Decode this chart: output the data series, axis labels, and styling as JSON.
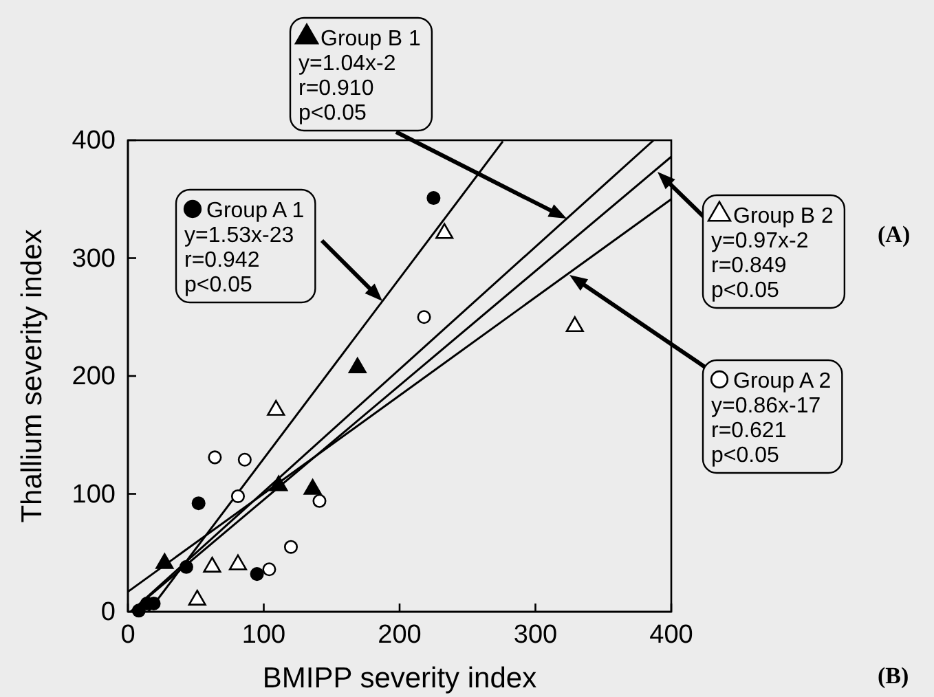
{
  "chart_data": {
    "type": "scatter",
    "xlabel": "BMIPP severity index",
    "ylabel": "Thallium severity index",
    "legend": "right",
    "xlim": [
      0,
      400
    ],
    "ylim": [
      0,
      400
    ],
    "xticks": [
      0,
      100,
      200,
      300,
      400
    ],
    "yticks": [
      0,
      100,
      200,
      300,
      400
    ],
    "grid": false,
    "series": [
      {
        "name": "Group A 1",
        "marker": "circle",
        "color": "#000000",
        "x": [
          8,
          14,
          19,
          43,
          52,
          95,
          225
        ],
        "values": [
          1,
          7,
          7,
          38,
          92,
          32,
          351
        ]
      },
      {
        "name": "Group B 1",
        "marker": "triangle",
        "color": "#000000",
        "x": [
          27,
          111,
          136,
          169
        ],
        "values": [
          41,
          107,
          104,
          207
        ]
      },
      {
        "name": "Group B 2",
        "marker": "triangle",
        "color": "#ffffff",
        "x": [
          51,
          62,
          81,
          109,
          233,
          329
        ],
        "values": [
          10,
          38,
          40,
          171,
          321,
          242
        ]
      },
      {
        "name": "Group A 2",
        "marker": "circle",
        "color": "#ffffff",
        "x": [
          64,
          86,
          81,
          141,
          120,
          104,
          218
        ],
        "values": [
          131,
          129,
          98,
          94,
          55,
          36,
          250
        ]
      },
      {
        "type": "line",
        "color": "#000000",
        "x": [
          15,
          276
        ],
        "values": [
          0,
          399
        ]
      },
      {
        "type": "line",
        "color": "#000000",
        "x": [
          2,
          387
        ],
        "values": [
          0,
          400
        ]
      },
      {
        "type": "line",
        "color": "#000000",
        "x": [
          2,
          400
        ],
        "values": [
          0,
          386
        ]
      },
      {
        "type": "line",
        "color": "#000000",
        "x": [
          0,
          400
        ],
        "values": [
          17,
          350
        ]
      }
    ],
    "annotations": [
      "y=1.53x-23\nr=0.942\np<0.05",
      "y=1.04x-2\nr=0.910\np<0.05",
      "y=0.97x-2\nr=0.849\np<0.05",
      "y=0.86x-17\nr=0.621\np<0.05",
      "(A)",
      "(B)"
    ]
  }
}
